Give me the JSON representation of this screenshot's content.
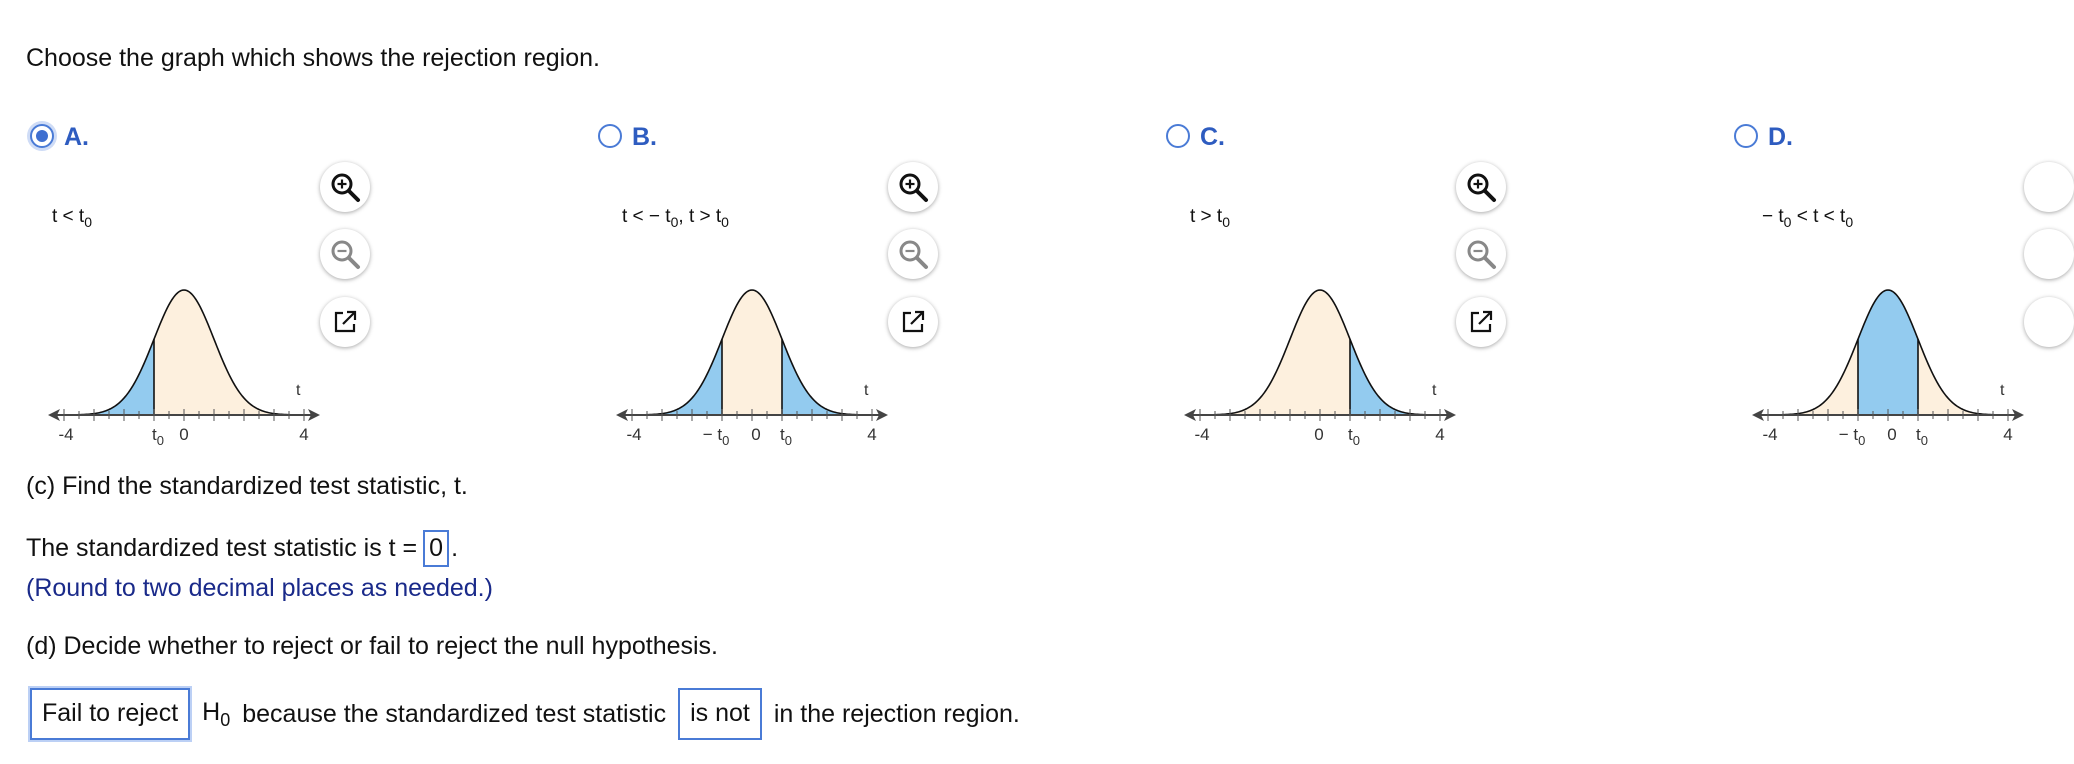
{
  "question": "Choose the graph which shows the rejection region.",
  "options": [
    {
      "letter": "A.",
      "selected": true,
      "condition_text": "t < t",
      "condition_sub": "0",
      "ticks": {
        "left": "-4",
        "right": "4",
        "t0": "t",
        "t0_sub": "0",
        "zero": "0",
        "neg_t0": ""
      }
    },
    {
      "letter": "B.",
      "selected": false,
      "condition_text": "t < − t",
      "condition_sub": "0",
      "condition_text2": ", t > t",
      "condition_sub2": "0",
      "ticks": {
        "left": "-4",
        "right": "4",
        "t0": "t",
        "t0_sub": "0",
        "zero": "0",
        "neg_t0": "− t"
      }
    },
    {
      "letter": "C.",
      "selected": false,
      "condition_text": "t > t",
      "condition_sub": "0",
      "ticks": {
        "left": "-4",
        "right": "4",
        "t0": "t",
        "t0_sub": "0",
        "zero": "0",
        "neg_t0": ""
      }
    },
    {
      "letter": "D.",
      "selected": false,
      "condition_text": "− t",
      "condition_sub": "0",
      "condition_text2": " < t < t",
      "condition_sub2": "0",
      "ticks": {
        "left": "-4",
        "right": "4",
        "t0": "t",
        "t0_sub": "0",
        "zero": "0",
        "neg_t0": "− t"
      }
    }
  ],
  "axis_var": "t",
  "colors": {
    "shade": "#93cbef",
    "fill": "#fdf0de",
    "accent": "#3f6fd0"
  },
  "part_c": {
    "title": "(c) Find the standardized test statistic, t.",
    "statement_prefix": "The standardized test statistic is t =",
    "value": "0",
    "statement_suffix": ".",
    "hint": "(Round to two decimal places as needed.)"
  },
  "part_d": {
    "title": "(d) Decide whether to reject or fail to reject the null hypothesis.",
    "decision": "Fail to reject",
    "h_letter": "H",
    "h_sub": "0",
    "middle": "because the standardized test statistic",
    "is_value": "is not",
    "end": "in the rejection region."
  },
  "icons": [
    "zoom-in-icon",
    "zoom-out-icon",
    "popout-icon"
  ]
}
